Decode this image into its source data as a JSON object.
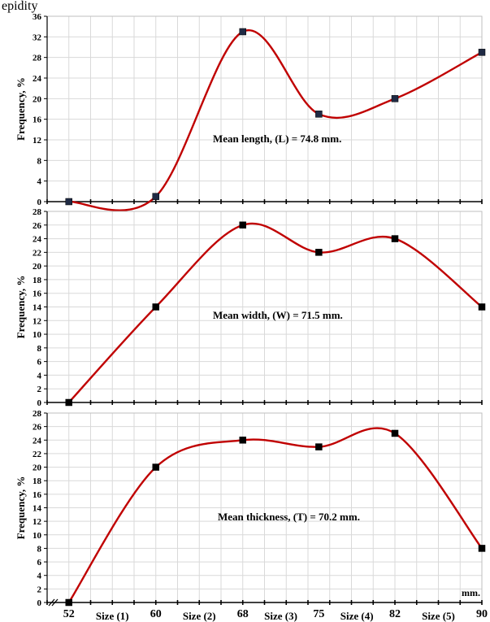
{
  "header": {
    "top_text": "epidity"
  },
  "chart_data": [
    {
      "type": "line",
      "ylabel": "Frequency, %",
      "ylim": [
        0,
        36
      ],
      "yticks": [
        0,
        4,
        8,
        12,
        16,
        20,
        24,
        28,
        32,
        36
      ],
      "x": [
        52,
        60,
        68,
        75,
        82,
        90
      ],
      "series": [
        {
          "values": [
            0,
            1,
            33,
            17,
            20,
            29
          ]
        }
      ],
      "annotation": "Mean length,  (L) = 74.8 mm.",
      "grid": true,
      "line_color": "#c00000",
      "marker_color": "#1f2a44"
    },
    {
      "type": "line",
      "ylabel": "Frequency, %",
      "ylim": [
        0,
        28
      ],
      "yticks": [
        0,
        2,
        4,
        6,
        8,
        10,
        12,
        14,
        16,
        18,
        20,
        22,
        24,
        26,
        28
      ],
      "x": [
        52,
        60,
        68,
        75,
        82,
        90
      ],
      "series": [
        {
          "values": [
            0,
            14,
            26,
            22,
            24,
            14
          ]
        }
      ],
      "annotation": "Mean width,  (W) = 71.5 mm.",
      "grid": true,
      "line_color": "#c00000",
      "marker_color": "#000000"
    },
    {
      "type": "line",
      "ylabel": "Frequency, %",
      "ylim": [
        0,
        28
      ],
      "yticks": [
        0,
        2,
        4,
        6,
        8,
        10,
        12,
        14,
        16,
        18,
        20,
        22,
        24,
        26,
        28
      ],
      "x": [
        52,
        60,
        68,
        75,
        82,
        90
      ],
      "series": [
        {
          "values": [
            0,
            20,
            24,
            23,
            25,
            8
          ]
        }
      ],
      "annotation": "Mean thickness, (T) = 70.2 mm.",
      "grid": true,
      "line_color": "#c00000",
      "marker_color": "#000000",
      "xtick_labels": [
        "52",
        "60",
        "68",
        "75",
        "82",
        "90"
      ],
      "size_labels": [
        "Size (1)",
        "Size (2)",
        "Size (3)",
        "Size (4)",
        "Size (5)"
      ],
      "x_unit": "mm."
    }
  ]
}
